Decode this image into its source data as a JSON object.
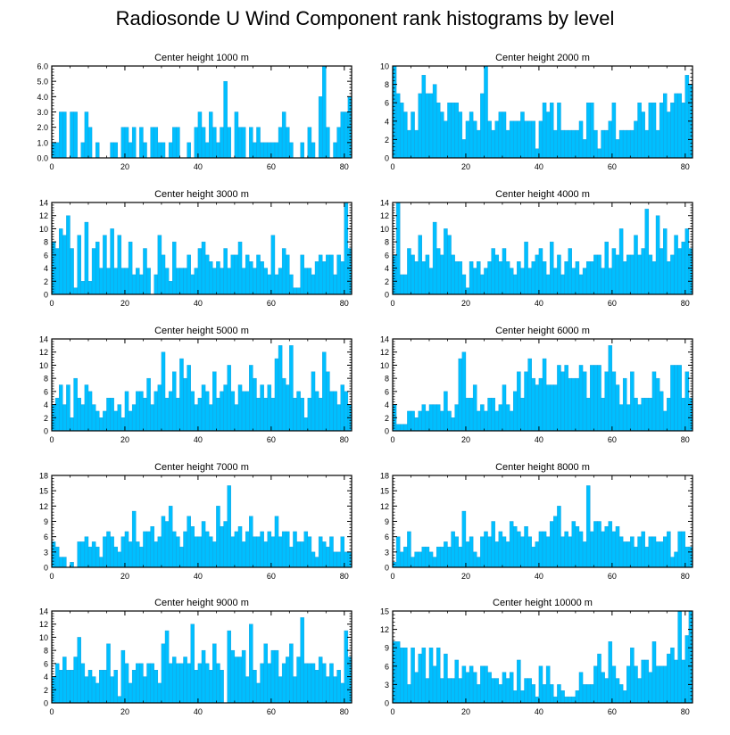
{
  "title": "Radiosonde U Wind Component rank histograms by level",
  "colors": {
    "bar_fill": "#00BFFF",
    "bar_edge": "#1A9AD6",
    "axis": "#000000"
  },
  "chart_data": [
    {
      "type": "bar",
      "subtitle": "Center height 1000 m",
      "x_start": 0,
      "ylim": [
        0,
        6
      ],
      "yticks": [
        0,
        1,
        2,
        3,
        4,
        5,
        6
      ],
      "ytick_labels": [
        "0.0",
        "1.0",
        "2.0",
        "3.0",
        "4.0",
        "5.0",
        "6.0"
      ],
      "xticks": [
        0,
        20,
        40,
        60,
        80
      ],
      "xlim": [
        0,
        82
      ],
      "values": [
        1,
        1,
        3,
        3,
        0,
        3,
        3,
        0,
        1,
        3,
        2,
        0,
        1,
        0,
        0,
        0,
        1,
        1,
        0,
        2,
        2,
        1,
        2,
        0,
        2,
        1,
        0,
        2,
        2,
        1,
        1,
        0,
        1,
        2,
        2,
        0,
        0,
        1,
        0,
        2,
        3,
        2,
        1,
        3,
        2,
        1,
        2,
        5,
        2,
        0,
        3,
        2,
        2,
        0,
        2,
        1,
        2,
        1,
        1,
        1,
        1,
        1,
        2,
        3,
        2,
        1,
        0,
        0,
        1,
        0,
        2,
        1,
        0,
        4,
        6,
        2,
        0,
        1,
        2,
        3,
        3,
        4
      ]
    },
    {
      "type": "bar",
      "subtitle": "Center height 2000 m",
      "x_start": 0,
      "ylim": [
        0,
        10
      ],
      "yticks": [
        0,
        2,
        4,
        6,
        8,
        10
      ],
      "ytick_labels": [
        "0",
        "2",
        "4",
        "6",
        "8",
        "10"
      ],
      "xticks": [
        0,
        20,
        40,
        60,
        80
      ],
      "xlim": [
        0,
        82
      ],
      "values": [
        10,
        7,
        6,
        5,
        3,
        5,
        3,
        7,
        9,
        7,
        7,
        8,
        6,
        5,
        4,
        6,
        6,
        6,
        5,
        2,
        4,
        5,
        4,
        3,
        7,
        10,
        4,
        3,
        4,
        5,
        5,
        3,
        4,
        4,
        4,
        5,
        4,
        4,
        4,
        1,
        4,
        6,
        5,
        6,
        3,
        6,
        3,
        3,
        3,
        3,
        3,
        4,
        2,
        6,
        6,
        3,
        1,
        3,
        3,
        4,
        6,
        2,
        3,
        3,
        3,
        3,
        4,
        6,
        5,
        3,
        6,
        6,
        3,
        6,
        7,
        5,
        6,
        7,
        7,
        6,
        9,
        8
      ]
    },
    {
      "type": "bar",
      "subtitle": "Center height 3000 m",
      "x_start": 0,
      "ylim": [
        0,
        14
      ],
      "yticks": [
        0,
        2,
        4,
        6,
        8,
        10,
        12,
        14
      ],
      "ytick_labels": [
        "0",
        "2",
        "4",
        "6",
        "8",
        "10",
        "12",
        "14"
      ],
      "xticks": [
        0,
        20,
        40,
        60,
        80
      ],
      "xlim": [
        0,
        82
      ],
      "values": [
        8,
        7,
        10,
        9,
        12,
        7,
        1,
        9,
        2,
        11,
        2,
        7,
        8,
        4,
        9,
        4,
        10,
        4,
        9,
        4,
        4,
        8,
        3,
        4,
        3,
        7,
        4,
        0,
        3,
        9,
        6,
        4,
        2,
        8,
        4,
        4,
        4,
        6,
        3,
        4,
        7,
        8,
        6,
        5,
        4,
        5,
        4,
        7,
        4,
        6,
        6,
        8,
        4,
        6,
        5,
        4,
        6,
        5,
        4,
        3,
        9,
        3,
        4,
        7,
        6,
        3,
        1,
        1,
        6,
        4,
        4,
        3,
        5,
        6,
        5,
        6,
        6,
        3,
        6,
        5,
        14,
        7
      ]
    },
    {
      "type": "bar",
      "subtitle": "Center height 4000 m",
      "x_start": 0,
      "ylim": [
        0,
        14
      ],
      "yticks": [
        0,
        2,
        4,
        6,
        8,
        10,
        12,
        14
      ],
      "ytick_labels": [
        "0",
        "2",
        "4",
        "6",
        "8",
        "10",
        "12",
        "14"
      ],
      "xticks": [
        0,
        20,
        40,
        60,
        80
      ],
      "xlim": [
        0,
        82
      ],
      "values": [
        6,
        14,
        3,
        3,
        7,
        6,
        5,
        9,
        5,
        6,
        4,
        11,
        7,
        6,
        10,
        9,
        6,
        5,
        5,
        3,
        1,
        5,
        4,
        5,
        3,
        4,
        5,
        7,
        6,
        5,
        7,
        5,
        4,
        3,
        5,
        4,
        8,
        4,
        5,
        6,
        7,
        5,
        3,
        8,
        4,
        6,
        3,
        5,
        7,
        4,
        5,
        3,
        4,
        5,
        5,
        6,
        6,
        4,
        8,
        4,
        7,
        6,
        10,
        5,
        6,
        6,
        9,
        6,
        7,
        13,
        6,
        5,
        12,
        7,
        10,
        5,
        6,
        9,
        7,
        8,
        10,
        7
      ]
    },
    {
      "type": "bar",
      "subtitle": "Center height 5000 m",
      "x_start": 0,
      "ylim": [
        0,
        14
      ],
      "yticks": [
        0,
        2,
        4,
        6,
        8,
        10,
        12,
        14
      ],
      "ytick_labels": [
        "0",
        "2",
        "4",
        "6",
        "8",
        "10",
        "12",
        "14"
      ],
      "xticks": [
        0,
        20,
        40,
        60,
        80
      ],
      "xlim": [
        0,
        82
      ],
      "values": [
        4,
        5,
        7,
        4,
        7,
        2,
        8,
        5,
        4,
        7,
        6,
        4,
        3,
        2,
        3,
        5,
        5,
        3,
        4,
        2,
        6,
        3,
        4,
        6,
        6,
        5,
        8,
        4,
        6,
        7,
        12,
        5,
        6,
        9,
        5,
        11,
        8,
        10,
        6,
        4,
        5,
        7,
        6,
        4,
        9,
        5,
        6,
        7,
        10,
        6,
        4,
        7,
        6,
        6,
        10,
        8,
        5,
        7,
        5,
        7,
        5,
        11,
        13,
        8,
        7,
        13,
        5,
        6,
        5,
        2,
        5,
        9,
        6,
        5,
        12,
        9,
        6,
        6,
        4,
        7,
        6,
        4
      ]
    },
    {
      "type": "bar",
      "subtitle": "Center height 6000 m",
      "x_start": 0,
      "ylim": [
        0,
        14
      ],
      "yticks": [
        0,
        2,
        4,
        6,
        8,
        10,
        12,
        14
      ],
      "ytick_labels": [
        "0",
        "2",
        "4",
        "6",
        "8",
        "10",
        "12",
        "14"
      ],
      "xticks": [
        0,
        20,
        40,
        60,
        80
      ],
      "xlim": [
        0,
        82
      ],
      "values": [
        4,
        1,
        1,
        1,
        3,
        3,
        2,
        3,
        4,
        3,
        4,
        4,
        4,
        3,
        6,
        3,
        2,
        4,
        11,
        12,
        5,
        5,
        7,
        3,
        4,
        3,
        5,
        5,
        3,
        4,
        7,
        4,
        3,
        6,
        9,
        5,
        9,
        11,
        8,
        7,
        8,
        11,
        7,
        7,
        7,
        10,
        9,
        10,
        8,
        8,
        8,
        10,
        9,
        5,
        10,
        10,
        10,
        5,
        9,
        13,
        9,
        7,
        4,
        8,
        4,
        9,
        5,
        4,
        5,
        5,
        5,
        9,
        8,
        6,
        3,
        5,
        10,
        10,
        10,
        5,
        9,
        5
      ]
    },
    {
      "type": "bar",
      "subtitle": "Center height 7000 m",
      "x_start": 0,
      "ylim": [
        0,
        18
      ],
      "yticks": [
        0,
        3,
        6,
        9,
        12,
        15,
        18
      ],
      "ytick_labels": [
        "0",
        "3",
        "6",
        "9",
        "12",
        "15",
        "18"
      ],
      "xticks": [
        0,
        20,
        40,
        60,
        80
      ],
      "xlim": [
        0,
        82
      ],
      "values": [
        5,
        4,
        2,
        2,
        0,
        1,
        0,
        5,
        5,
        6,
        4,
        5,
        4,
        2,
        6,
        7,
        6,
        4,
        3,
        6,
        7,
        5,
        11,
        5,
        4,
        7,
        7,
        8,
        5,
        6,
        10,
        9,
        12,
        7,
        6,
        4,
        7,
        10,
        8,
        6,
        6,
        9,
        7,
        6,
        5,
        12,
        8,
        9,
        16,
        6,
        7,
        8,
        5,
        7,
        10,
        6,
        6,
        7,
        5,
        7,
        6,
        10,
        6,
        7,
        7,
        4,
        7,
        5,
        5,
        7,
        6,
        3,
        2,
        6,
        5,
        4,
        6,
        3,
        3,
        6,
        3,
        3
      ]
    },
    {
      "type": "bar",
      "subtitle": "Center height 8000 m",
      "x_start": 0,
      "ylim": [
        0,
        18
      ],
      "yticks": [
        0,
        3,
        6,
        9,
        12,
        15,
        18
      ],
      "ytick_labels": [
        "0",
        "3",
        "6",
        "9",
        "12",
        "15",
        "18"
      ],
      "xticks": [
        0,
        20,
        40,
        60,
        80
      ],
      "xlim": [
        0,
        82
      ],
      "values": [
        1,
        6,
        3,
        4,
        7,
        2,
        3,
        3,
        4,
        4,
        3,
        2,
        4,
        4,
        5,
        4,
        7,
        6,
        4,
        11,
        5,
        6,
        3,
        2,
        6,
        7,
        6,
        9,
        5,
        7,
        6,
        5,
        9,
        8,
        7,
        6,
        8,
        6,
        4,
        5,
        7,
        7,
        6,
        9,
        10,
        12,
        6,
        7,
        6,
        9,
        8,
        7,
        5,
        16,
        7,
        9,
        9,
        7,
        8,
        9,
        7,
        8,
        6,
        5,
        5,
        6,
        4,
        6,
        7,
        4,
        6,
        6,
        5,
        5,
        6,
        7,
        2,
        3,
        7,
        7,
        4,
        4
      ]
    },
    {
      "type": "bar",
      "subtitle": "Center height 9000 m",
      "x_start": 0,
      "ylim": [
        0,
        14
      ],
      "yticks": [
        0,
        2,
        4,
        6,
        8,
        10,
        12,
        14
      ],
      "ytick_labels": [
        "0",
        "2",
        "4",
        "6",
        "8",
        "10",
        "12",
        "14"
      ],
      "xticks": [
        0,
        20,
        40,
        60,
        80
      ],
      "xlim": [
        0,
        82
      ],
      "values": [
        4,
        6,
        5,
        7,
        5,
        5,
        7,
        10,
        6,
        4,
        5,
        4,
        3,
        5,
        5,
        9,
        4,
        5,
        1,
        8,
        6,
        3,
        5,
        6,
        6,
        4,
        6,
        6,
        5,
        3,
        9,
        11,
        6,
        7,
        6,
        6,
        7,
        6,
        12,
        5,
        6,
        8,
        6,
        5,
        9,
        6,
        5,
        0,
        11,
        8,
        7,
        7,
        8,
        4,
        12,
        5,
        3,
        6,
        9,
        6,
        8,
        8,
        4,
        6,
        7,
        9,
        4,
        7,
        13,
        6,
        6,
        6,
        5,
        7,
        6,
        4,
        6,
        4,
        5,
        3,
        11,
        7
      ]
    },
    {
      "type": "bar",
      "subtitle": "Center height 10000 m",
      "x_start": 0,
      "ylim": [
        0,
        15
      ],
      "yticks": [
        0,
        3,
        6,
        9,
        12,
        15
      ],
      "ytick_labels": [
        "0",
        "3",
        "6",
        "9",
        "12",
        "15"
      ],
      "xticks": [
        0,
        20,
        40,
        60,
        80
      ],
      "xlim": [
        0,
        82
      ],
      "values": [
        10,
        10,
        9,
        9,
        3,
        9,
        5,
        8,
        9,
        4,
        9,
        6,
        9,
        4,
        8,
        4,
        4,
        7,
        4,
        6,
        5,
        6,
        5,
        3,
        6,
        6,
        5,
        4,
        4,
        3,
        5,
        4,
        5,
        2,
        7,
        2,
        4,
        4,
        3,
        1,
        6,
        3,
        6,
        3,
        1,
        3,
        2,
        1,
        1,
        1,
        2,
        5,
        3,
        3,
        3,
        6,
        8,
        5,
        4,
        10,
        6,
        4,
        3,
        2,
        6,
        9,
        6,
        4,
        7,
        7,
        5,
        10,
        6,
        6,
        6,
        8,
        9,
        7,
        15,
        7,
        11,
        15
      ]
    }
  ]
}
